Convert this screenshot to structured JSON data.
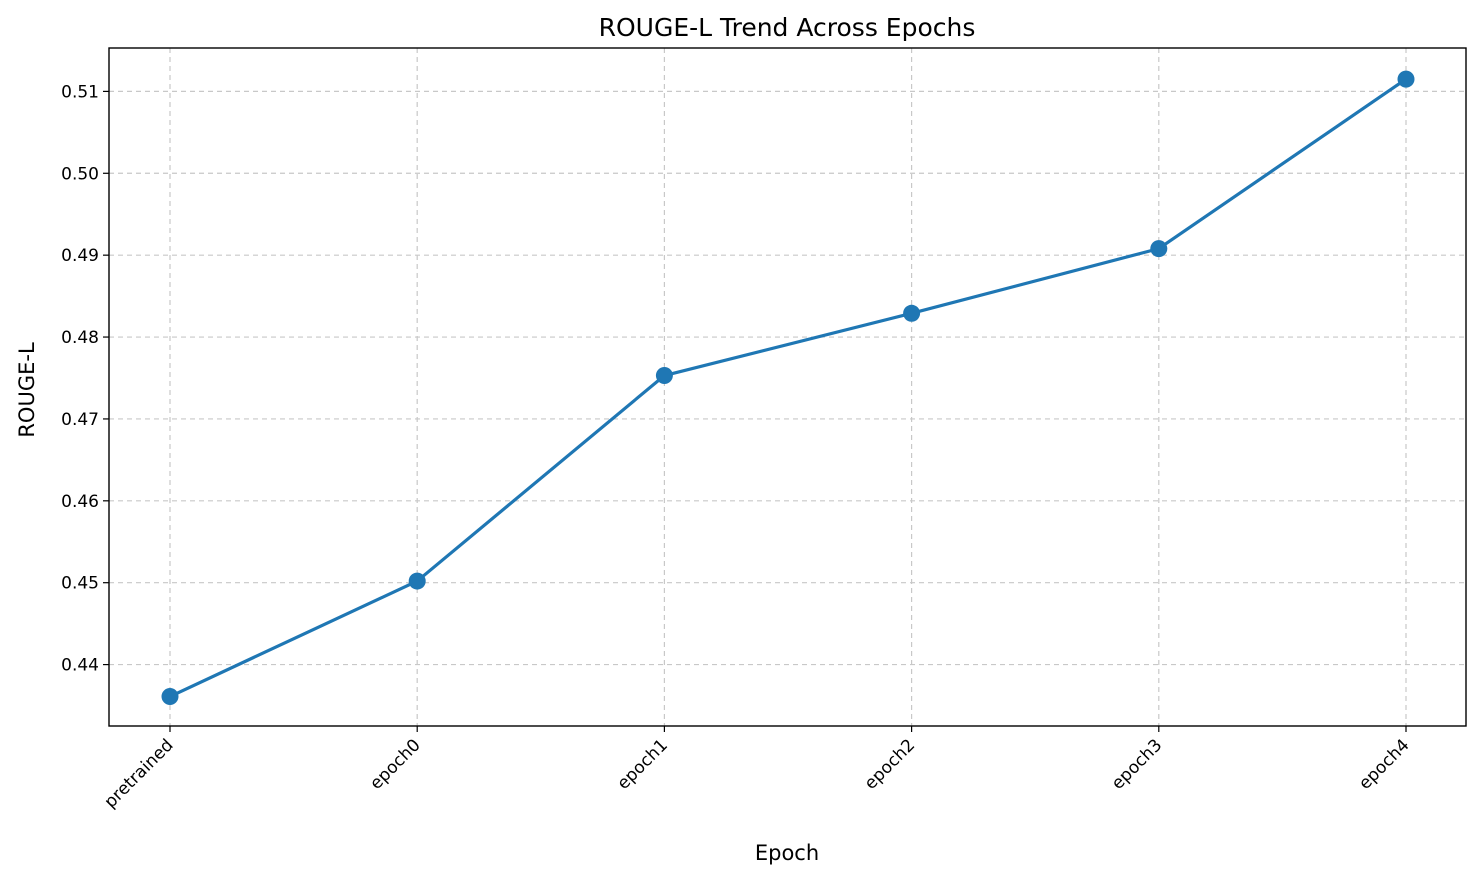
{
  "chart_data": {
    "type": "line",
    "title": "ROUGE-L Trend Across Epochs",
    "xlabel": "Epoch",
    "ylabel": "ROUGE-L",
    "categories": [
      "pretrained",
      "epoch0",
      "epoch1",
      "epoch2",
      "epoch3",
      "epoch4"
    ],
    "series": [
      {
        "values": [
          0.4361,
          0.4502,
          0.4753,
          0.4829,
          0.4908,
          0.5115
        ]
      }
    ],
    "ylim": [
      0.4325,
      0.5153
    ],
    "yticks": [
      0.44,
      0.45,
      0.46,
      0.47,
      0.48,
      0.49,
      0.5,
      0.51
    ],
    "ytick_labels": [
      "0.44",
      "0.45",
      "0.46",
      "0.47",
      "0.48",
      "0.49",
      "0.50",
      "0.51"
    ],
    "grid": true,
    "colors": {
      "line": "#1f77b4",
      "grid": "#c8c8c8",
      "axis": "#000000"
    }
  }
}
